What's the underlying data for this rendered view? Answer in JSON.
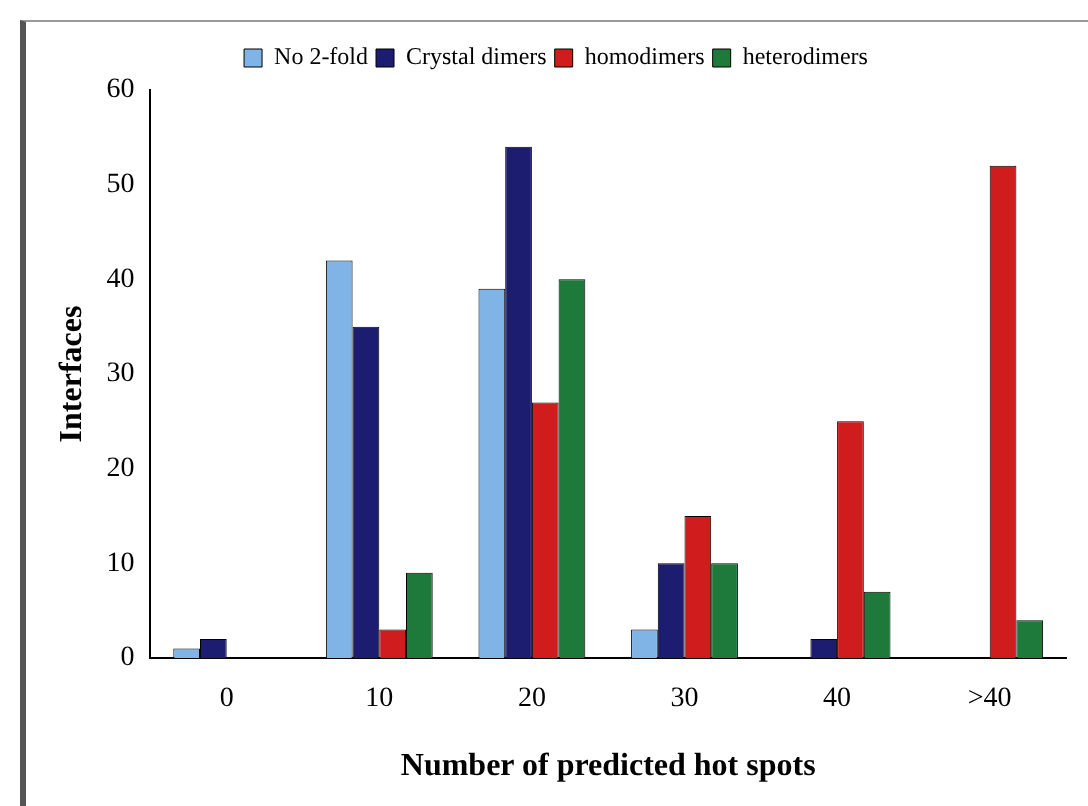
{
  "chart_data": {
    "type": "bar",
    "xlabel": "Number of predicted hot spots",
    "ylabel": "Interfaces",
    "categories": [
      "0",
      "10",
      "20",
      "30",
      "40",
      ">40"
    ],
    "series": [
      {
        "name": "No 2-fold",
        "color": "#80b4e6",
        "values": [
          1,
          42,
          39,
          3,
          0,
          0
        ]
      },
      {
        "name": "Crystal dimers",
        "color": "#1c1c70",
        "values": [
          2,
          35,
          54,
          10,
          2,
          0
        ]
      },
      {
        "name": "homodimers",
        "color": "#d01c1c",
        "values": [
          0,
          3,
          27,
          15,
          25,
          52
        ]
      },
      {
        "name": "heterodimers",
        "color": "#1e7a3a",
        "values": [
          0,
          9,
          40,
          10,
          7,
          4
        ]
      }
    ],
    "ylim": [
      0,
      60
    ],
    "yticks": [
      0,
      10,
      20,
      30,
      40,
      50,
      60
    ],
    "grid": false,
    "legend": "top"
  }
}
